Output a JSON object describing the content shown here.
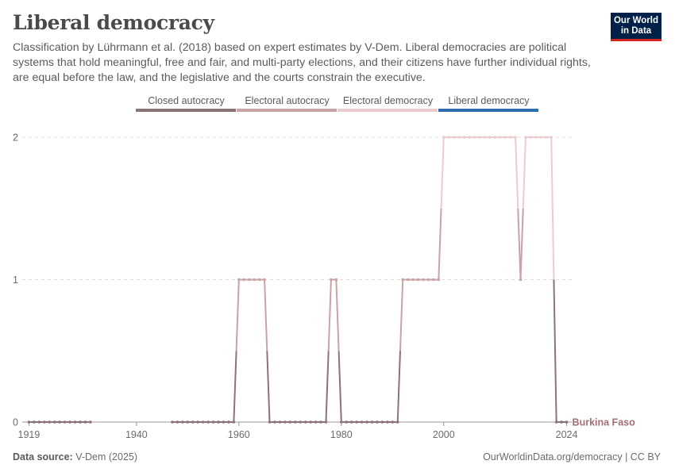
{
  "header": {
    "title": "Liberal democracy",
    "subtitle": "Classification by Lührmann et al. (2018) based on expert estimates by V-Dem. Liberal democracies are political systems that hold meaningful, free and fair, and multi-party elections, and their citizens have further individual rights, are equal before the law, and the legislative and the courts constrain the executive.",
    "logo_line1": "Our World",
    "logo_line2": "in Data"
  },
  "footer": {
    "source_label": "Data source:",
    "source_value": "V-Dem (2025)",
    "url": "OurWorldinData.org/democracy | CC BY"
  },
  "colors": {
    "closed_autocracy": "#8b7376",
    "electoral_autocracy": "#c9a3a6",
    "electoral_democracy": "#ebcdd0",
    "liberal_democracy": "#2d6ead",
    "series_label": "#a36f74"
  },
  "chart_data": {
    "type": "line",
    "title": "Liberal democracy",
    "xlabel": "",
    "ylabel": "",
    "xlim": [
      1918,
      2025
    ],
    "ylim": [
      0,
      2
    ],
    "x_ticks": [
      1919,
      1940,
      1960,
      1980,
      2000,
      2024
    ],
    "y_ticks": [
      0,
      1,
      2
    ],
    "grid": "horizontal dashed",
    "legend_position": "top",
    "legend": [
      {
        "label": "Closed autocracy",
        "value": 0
      },
      {
        "label": "Electoral autocracy",
        "value": 1
      },
      {
        "label": "Electoral democracy",
        "value": 2
      },
      {
        "label": "Liberal democracy",
        "value": 3
      }
    ],
    "series": [
      {
        "name": "Burkina Faso",
        "segments": [
          {
            "x": [
              1919,
              1920,
              1921,
              1922,
              1923,
              1924,
              1925,
              1926,
              1927,
              1928,
              1929,
              1930,
              1931
            ],
            "y": [
              0,
              0,
              0,
              0,
              0,
              0,
              0,
              0,
              0,
              0,
              0,
              0,
              0
            ]
          },
          {
            "x": [
              1947,
              1948,
              1949,
              1950,
              1951,
              1952,
              1953,
              1954,
              1955,
              1956,
              1957,
              1958,
              1959,
              1960,
              1961,
              1962,
              1963,
              1964,
              1965,
              1966,
              1967,
              1968,
              1969,
              1970,
              1971,
              1972,
              1973,
              1974,
              1975,
              1976,
              1977,
              1978,
              1979,
              1980,
              1981,
              1982,
              1983,
              1984,
              1985,
              1986,
              1987,
              1988,
              1989,
              1990,
              1991,
              1992,
              1993,
              1994,
              1995,
              1996,
              1997,
              1998,
              1999,
              2000,
              2001,
              2002,
              2003,
              2004,
              2005,
              2006,
              2007,
              2008,
              2009,
              2010,
              2011,
              2012,
              2013,
              2014,
              2015,
              2016,
              2017,
              2018,
              2019,
              2020,
              2021,
              2022,
              2023,
              2024
            ],
            "y": [
              0,
              0,
              0,
              0,
              0,
              0,
              0,
              0,
              0,
              0,
              0,
              0,
              0,
              1,
              1,
              1,
              1,
              1,
              1,
              0,
              0,
              0,
              0,
              0,
              0,
              0,
              0,
              0,
              0,
              0,
              0,
              1,
              1,
              0,
              0,
              0,
              0,
              0,
              0,
              0,
              0,
              0,
              0,
              0,
              0,
              1,
              1,
              1,
              1,
              1,
              1,
              1,
              1,
              2,
              2,
              2,
              2,
              2,
              2,
              2,
              2,
              2,
              2,
              2,
              2,
              2,
              2,
              2,
              1,
              2,
              2,
              2,
              2,
              2,
              2,
              0,
              0,
              0
            ]
          }
        ]
      }
    ]
  }
}
